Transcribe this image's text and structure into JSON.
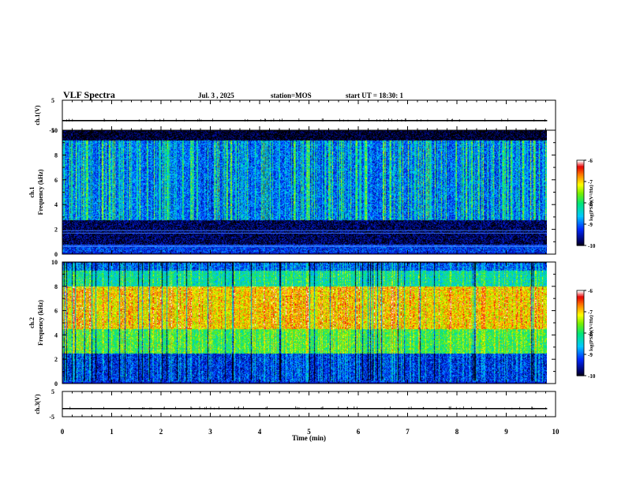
{
  "header": {
    "title": "VLF Spectra",
    "date": "Jul. 3 , 2025",
    "station": "station=MOS",
    "start": "start UT = 18:30: 1"
  },
  "chart_data": [
    {
      "type": "line",
      "panel": "ch1-waveform",
      "ylabel": "ch.1(V)",
      "ylim": [
        -5,
        5
      ],
      "yticks": [
        "5",
        "-5"
      ],
      "series": [
        {
          "values_flat_level": -1.8
        }
      ]
    },
    {
      "type": "heatmap",
      "panel": "ch1-spectrogram",
      "ylabel": "ch.1 Frequency (kHz)",
      "ylim": [
        0,
        10
      ],
      "yticks": [
        "0",
        "2",
        "4",
        "6",
        "8",
        "10"
      ],
      "x_end": 9.83,
      "colorbar": {
        "label": "log(PSD)(V²/Hz)",
        "ticks": [
          "-6",
          "-7",
          "-8",
          "-9",
          "-10"
        ],
        "range": [
          -10,
          -6
        ]
      },
      "bands_khz": [
        [
          0.1,
          0.8,
          -9.2
        ],
        [
          0.8,
          2.8,
          -9.8
        ],
        [
          2.8,
          9.2,
          -8.8
        ],
        [
          9.2,
          10,
          -10
        ]
      ],
      "lines_khz": [
        0.6,
        0.7,
        1.7,
        1.9
      ]
    },
    {
      "type": "heatmap",
      "panel": "ch2-spectrogram",
      "ylabel": "ch.2 Frequency (kHz)",
      "ylim": [
        0,
        10
      ],
      "yticks": [
        "0",
        "2",
        "4",
        "6",
        "8",
        "10"
      ],
      "x_end": 9.83,
      "colorbar": {
        "label": "log(PSD)(V²/Hz)",
        "ticks": [
          "-6",
          "-7",
          "-8",
          "-9",
          "-10"
        ],
        "range": [
          -10,
          -6
        ]
      },
      "bands_khz": [
        [
          0,
          2.5,
          -9.2
        ],
        [
          2.5,
          4.5,
          -7.8
        ],
        [
          4.5,
          8,
          -7.0
        ],
        [
          8,
          9.3,
          -8.2
        ],
        [
          9.3,
          10,
          -9.0
        ]
      ]
    },
    {
      "type": "line",
      "panel": "ch3-waveform",
      "ylabel": "ch.3(V)",
      "ylim": [
        -5,
        5
      ],
      "yticks": [
        "5",
        "-5"
      ],
      "series": [
        {
          "values_flat_level": -1.8
        }
      ]
    }
  ],
  "xaxis": {
    "label": "Time (min)",
    "xlim": [
      0,
      10
    ],
    "ticks": [
      "0",
      "1",
      "2",
      "3",
      "4",
      "5",
      "6",
      "7",
      "8",
      "9",
      "10"
    ]
  }
}
